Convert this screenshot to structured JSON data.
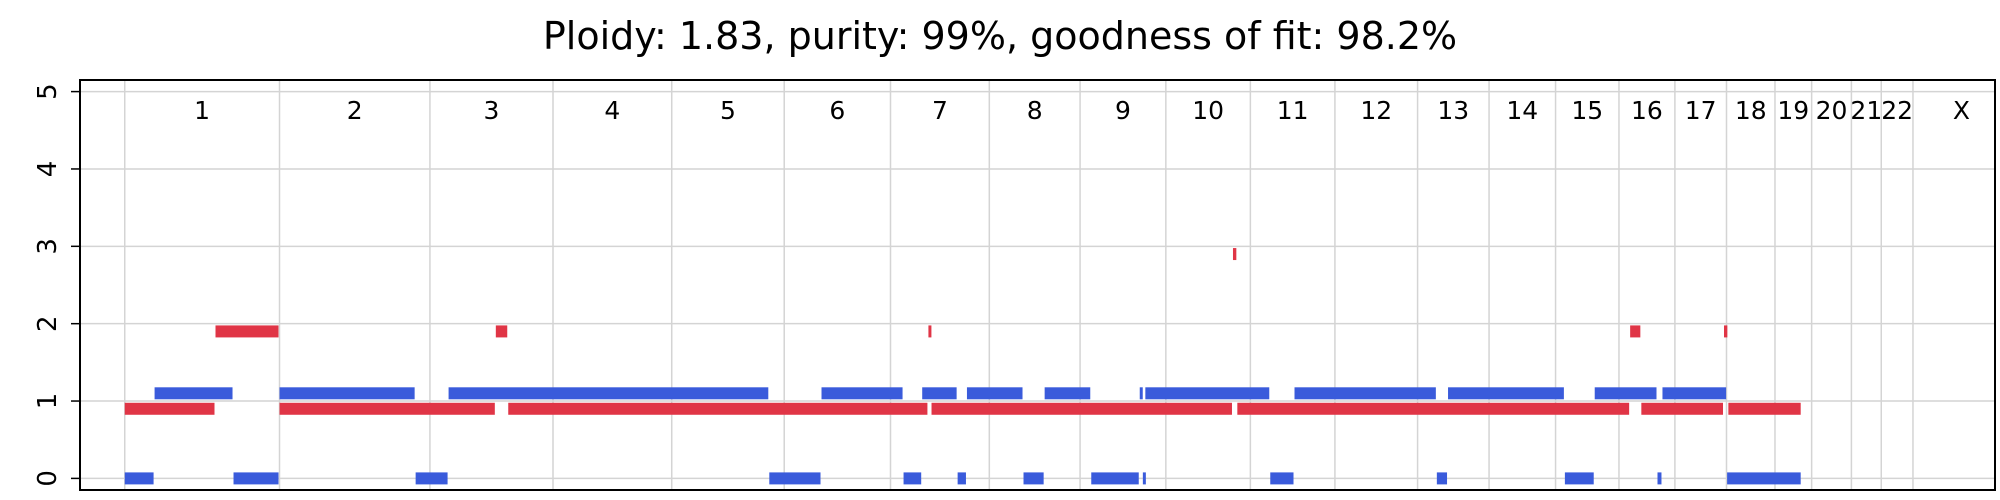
{
  "title": "Ploidy: 1.83, purity: 99%, goodness of fit: 98.2%",
  "chart_data": {
    "type": "bar",
    "title": "Ploidy: 1.83, purity: 99%, goodness of fit: 98.2%",
    "xlabel": "",
    "ylabel": "",
    "ylim": [
      -0.15,
      5.15
    ],
    "yticks": [
      0,
      1,
      2,
      3,
      4,
      5
    ],
    "grid": true,
    "chromosomes": [
      "1",
      "2",
      "3",
      "4",
      "5",
      "6",
      "7",
      "8",
      "9",
      "10",
      "11",
      "12",
      "13",
      "14",
      "15",
      "16",
      "17",
      "18",
      "19",
      "20",
      "21",
      "22",
      "X"
    ],
    "chrom_bounds": [
      0,
      249,
      491,
      689,
      880,
      1061,
      1232,
      1391,
      1537,
      1675,
      1811,
      1947,
      2080,
      2195,
      2302,
      2404,
      2494,
      2577,
      2655,
      2714,
      2778,
      2826,
      2877,
      3033
    ],
    "series": [
      {
        "color": "#3a5bdb",
        "segments": [
          [
            0,
            48,
            0
          ],
          [
            48,
            175,
            1.1
          ],
          [
            175,
            249,
            0
          ],
          [
            249,
            468,
            1.1
          ],
          [
            468,
            521,
            0
          ],
          [
            521,
            1037,
            1.1
          ],
          [
            1037,
            1121,
            0
          ],
          [
            1121,
            1253,
            1.1
          ],
          [
            1253,
            1283,
            0
          ],
          [
            1283,
            1340,
            1.1
          ],
          [
            1340,
            1355,
            0
          ],
          [
            1355,
            1446,
            1.1
          ],
          [
            1446,
            1480,
            0
          ],
          [
            1480,
            1555,
            1.1
          ],
          [
            1555,
            1633,
            0
          ],
          [
            1633,
            1638,
            1.1
          ],
          [
            1638,
            1642,
            0
          ],
          [
            1642,
            1843,
            1.1
          ],
          [
            1843,
            1882,
            0
          ],
          [
            1882,
            2111,
            1.1
          ],
          [
            2111,
            2129,
            0
          ],
          [
            2129,
            2317,
            1.1
          ],
          [
            2317,
            2365,
            0
          ],
          [
            2365,
            2466,
            1.1
          ],
          [
            2466,
            2474,
            0
          ],
          [
            2474,
            2578,
            1.1
          ],
          [
            2578,
            2698,
            0
          ]
        ]
      },
      {
        "color": "#e03546",
        "segments": [
          [
            0,
            146,
            0.9
          ],
          [
            146,
            249,
            1.9
          ],
          [
            249,
            597,
            0.9
          ],
          [
            597,
            617,
            1.9
          ],
          [
            617,
            1293,
            0.9
          ],
          [
            1293,
            1298,
            1.9
          ],
          [
            1298,
            1783,
            0.9
          ],
          [
            1783,
            1790,
            2.9
          ],
          [
            1790,
            2422,
            0.9
          ],
          [
            2422,
            2440,
            1.9
          ],
          [
            2440,
            2573,
            0.9
          ],
          [
            2573,
            2580,
            1.9
          ],
          [
            2580,
            2698,
            0.9
          ]
        ]
      }
    ]
  }
}
